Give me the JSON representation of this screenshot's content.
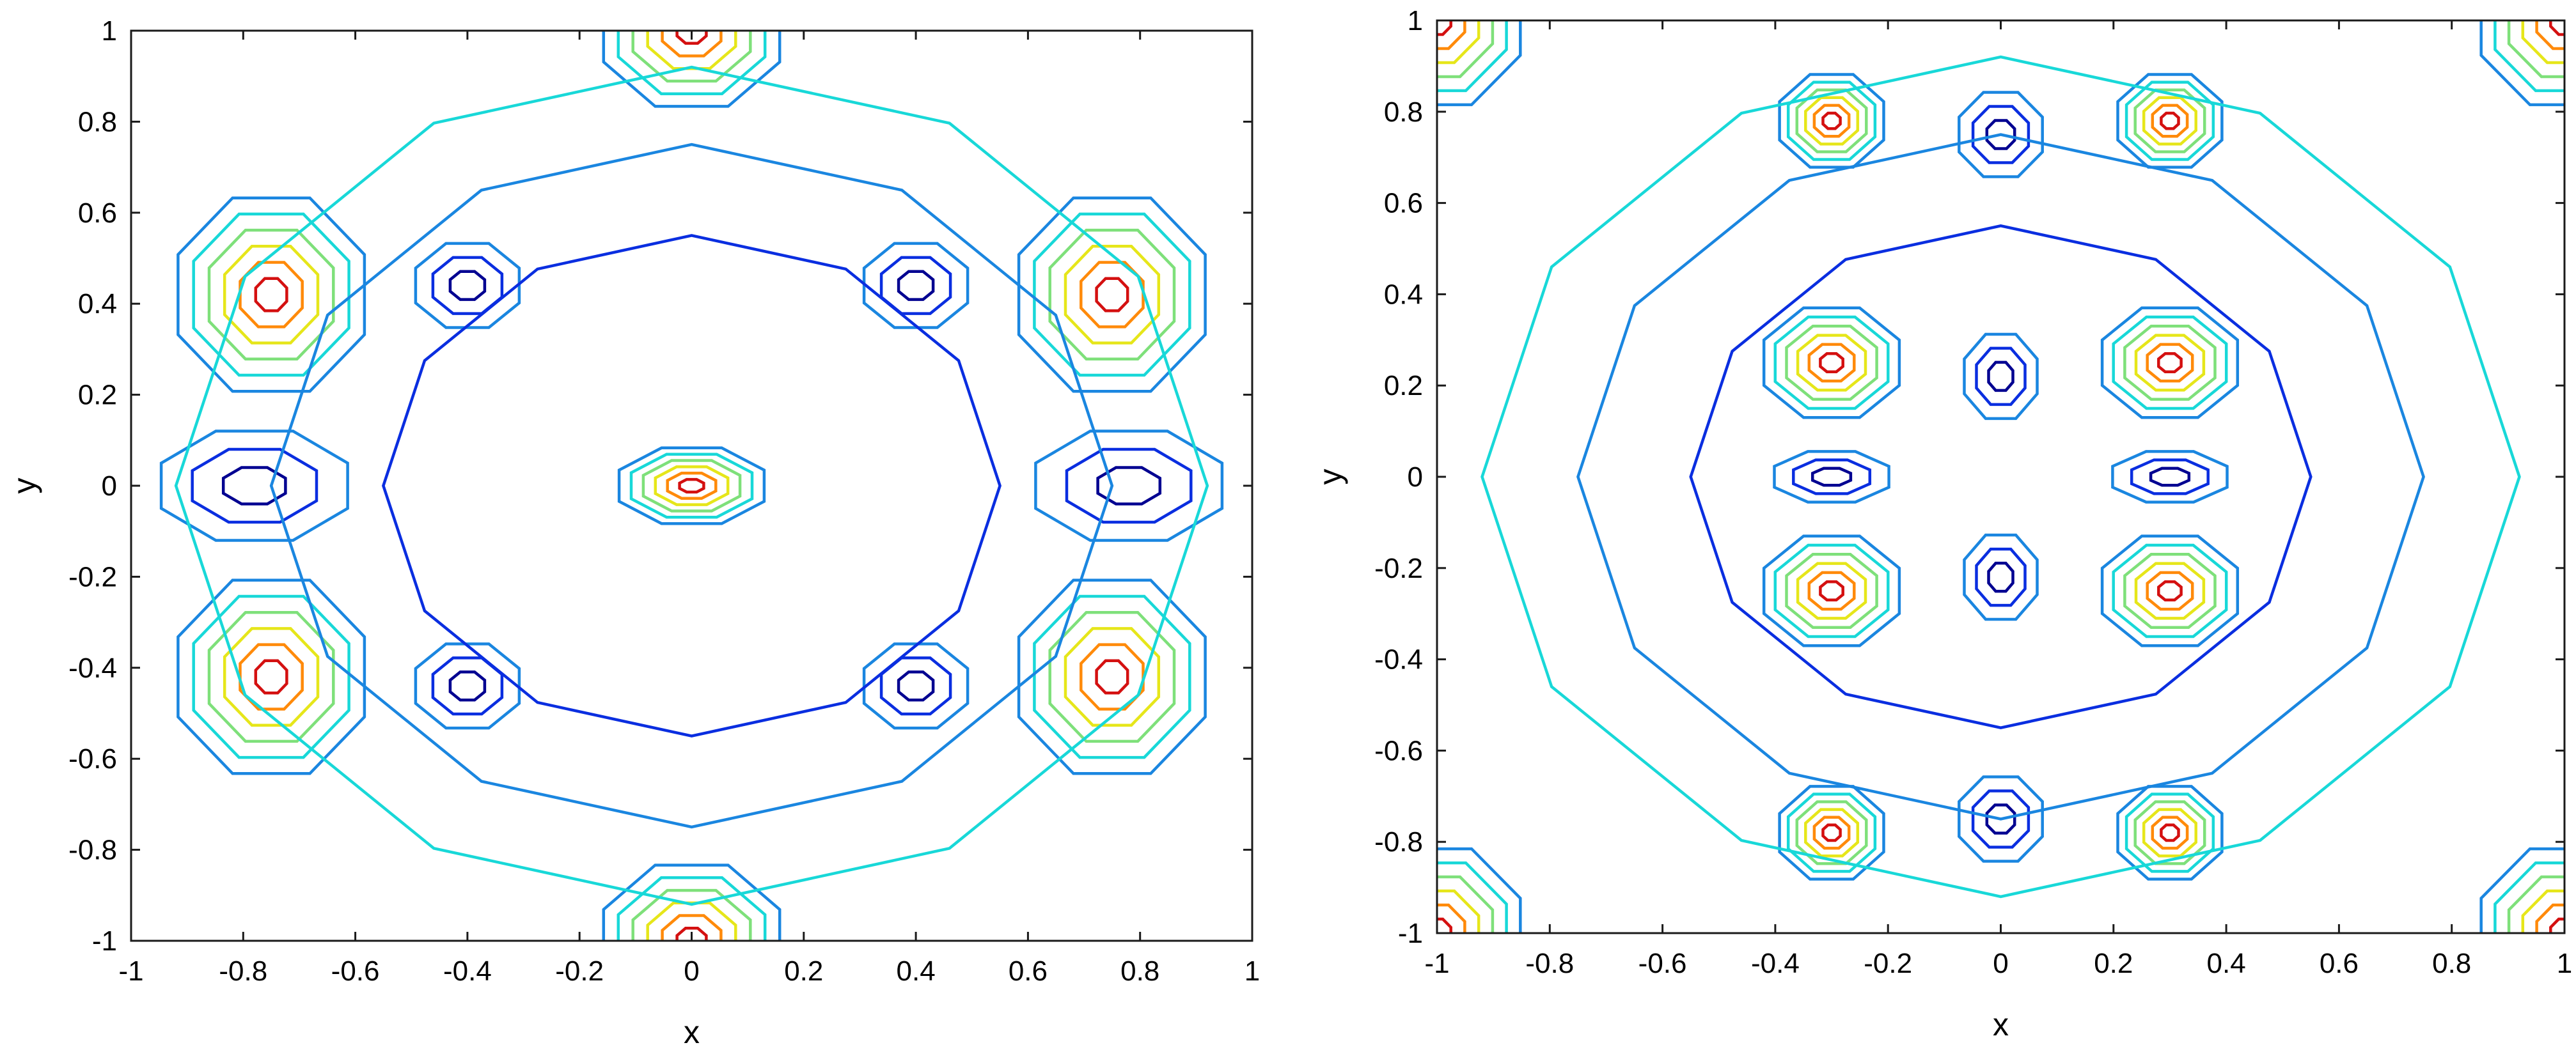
{
  "colors": {
    "levels": [
      "#000091",
      "#0a2ee0",
      "#1a86e0",
      "#18d8d8",
      "#7ee07a",
      "#e6e61a",
      "#ff8a0a",
      "#d41010"
    ]
  },
  "chart_data": [
    {
      "type": "contour",
      "title": "",
      "xlabel": "x",
      "ylabel": "y",
      "xlim": [
        -1,
        1
      ],
      "ylim": [
        -1,
        1
      ],
      "xticks": [
        -1,
        -0.8,
        -0.6,
        -0.4,
        -0.2,
        0,
        0.2,
        0.4,
        0.6,
        0.8,
        1
      ],
      "yticks": [
        -1,
        -0.8,
        -0.6,
        -0.4,
        -0.2,
        0,
        0.2,
        0.4,
        0.6,
        0.8,
        1
      ],
      "xtick_labels": [
        "-1",
        "-0.8",
        "-0.6",
        "-0.4",
        "-0.2",
        "0",
        "0.2",
        "0.4",
        "0.6",
        "0.8",
        "1"
      ],
      "ytick_labels": [
        "-1",
        "-0.8",
        "-0.6",
        "-0.4",
        "-0.2",
        "0",
        "0.2",
        "0.4",
        "0.6",
        "0.8",
        "1"
      ],
      "grid": false,
      "colormap": "jet",
      "features": [
        {
          "name": "peak-upper-left",
          "x": -0.75,
          "y": 0.42,
          "rx": 0.18,
          "ry": 0.23,
          "kind": "max"
        },
        {
          "name": "peak-upper-right",
          "x": 0.75,
          "y": 0.42,
          "rx": 0.18,
          "ry": 0.23,
          "kind": "max"
        },
        {
          "name": "peak-lower-left",
          "x": -0.75,
          "y": -0.42,
          "rx": 0.18,
          "ry": 0.23,
          "kind": "max"
        },
        {
          "name": "peak-lower-right",
          "x": 0.75,
          "y": -0.42,
          "rx": 0.18,
          "ry": 0.23,
          "kind": "max"
        },
        {
          "name": "peak-top-center",
          "x": 0,
          "y": 1.0,
          "rx": 0.17,
          "ry": 0.18,
          "kind": "max"
        },
        {
          "name": "peak-bottom-center",
          "x": 0,
          "y": -1.0,
          "rx": 0.17,
          "ry": 0.18,
          "kind": "max"
        },
        {
          "name": "center-bump",
          "x": 0,
          "y": 0.0,
          "rx": 0.14,
          "ry": 0.09,
          "kind": "max"
        },
        {
          "name": "trough-left",
          "x": -0.78,
          "y": 0.0,
          "rx": 0.18,
          "ry": 0.13,
          "kind": "min"
        },
        {
          "name": "trough-right",
          "x": 0.78,
          "y": 0.0,
          "rx": 0.18,
          "ry": 0.13,
          "kind": "min"
        },
        {
          "name": "trough-ul",
          "x": -0.4,
          "y": 0.44,
          "rx": 0.1,
          "ry": 0.1,
          "kind": "min"
        },
        {
          "name": "trough-ur",
          "x": 0.4,
          "y": 0.44,
          "rx": 0.1,
          "ry": 0.1,
          "kind": "min"
        },
        {
          "name": "trough-ll",
          "x": -0.4,
          "y": -0.44,
          "rx": 0.1,
          "ry": 0.1,
          "kind": "min"
        },
        {
          "name": "trough-lr",
          "x": 0.4,
          "y": -0.44,
          "rx": 0.1,
          "ry": 0.1,
          "kind": "min"
        }
      ]
    },
    {
      "type": "contour",
      "title": "",
      "xlabel": "x",
      "ylabel": "y",
      "xlim": [
        -1,
        1
      ],
      "ylim": [
        -1,
        1
      ],
      "xticks": [
        -1,
        -0.8,
        -0.6,
        -0.4,
        -0.2,
        0,
        0.2,
        0.4,
        0.6,
        0.8,
        1
      ],
      "yticks": [
        -1,
        -0.8,
        -0.6,
        -0.4,
        -0.2,
        0,
        0.2,
        0.4,
        0.6,
        0.8,
        1
      ],
      "xtick_labels": [
        "-1",
        "-0.8",
        "-0.6",
        "-0.4",
        "-0.2",
        "0",
        "0.2",
        "0.4",
        "0.6",
        "0.8",
        "1"
      ],
      "ytick_labels": [
        "-1",
        "-0.8",
        "-0.6",
        "-0.4",
        "-0.2",
        "0",
        "0.2",
        "0.4",
        "0.6",
        "0.8",
        "1"
      ],
      "grid": false,
      "colormap": "jet",
      "features": [
        {
          "name": "peak-ul",
          "x": -0.3,
          "y": 0.25,
          "rx": 0.13,
          "ry": 0.13,
          "kind": "max"
        },
        {
          "name": "peak-ur",
          "x": 0.3,
          "y": 0.25,
          "rx": 0.13,
          "ry": 0.13,
          "kind": "max"
        },
        {
          "name": "peak-ll",
          "x": -0.3,
          "y": -0.25,
          "rx": 0.13,
          "ry": 0.13,
          "kind": "max"
        },
        {
          "name": "peak-lr",
          "x": 0.3,
          "y": -0.25,
          "rx": 0.13,
          "ry": 0.13,
          "kind": "max"
        },
        {
          "name": "peak-top-l",
          "x": -0.3,
          "y": 0.78,
          "rx": 0.1,
          "ry": 0.11,
          "kind": "max"
        },
        {
          "name": "peak-top-r",
          "x": 0.3,
          "y": 0.78,
          "rx": 0.1,
          "ry": 0.11,
          "kind": "max"
        },
        {
          "name": "peak-bot-l",
          "x": -0.3,
          "y": -0.78,
          "rx": 0.1,
          "ry": 0.11,
          "kind": "max"
        },
        {
          "name": "peak-bot-r",
          "x": 0.3,
          "y": -0.78,
          "rx": 0.1,
          "ry": 0.11,
          "kind": "max"
        },
        {
          "name": "corner-ul",
          "x": -1.0,
          "y": 1.0,
          "rx": 0.16,
          "ry": 0.2,
          "kind": "max"
        },
        {
          "name": "corner-ur",
          "x": 1.0,
          "y": 1.0,
          "rx": 0.16,
          "ry": 0.2,
          "kind": "max"
        },
        {
          "name": "corner-ll",
          "x": -1.0,
          "y": -1.0,
          "rx": 0.16,
          "ry": 0.2,
          "kind": "max"
        },
        {
          "name": "corner-lr",
          "x": 1.0,
          "y": -1.0,
          "rx": 0.16,
          "ry": 0.2,
          "kind": "max"
        },
        {
          "name": "trough-center-top",
          "x": 0,
          "y": 0.75,
          "rx": 0.08,
          "ry": 0.1,
          "kind": "min"
        },
        {
          "name": "trough-center-bot",
          "x": 0,
          "y": -0.75,
          "rx": 0.08,
          "ry": 0.1,
          "kind": "min"
        },
        {
          "name": "trough-l0",
          "x": -0.3,
          "y": 0.0,
          "rx": 0.11,
          "ry": 0.06,
          "kind": "min"
        },
        {
          "name": "trough-r0",
          "x": 0.3,
          "y": 0.0,
          "rx": 0.11,
          "ry": 0.06,
          "kind": "min"
        },
        {
          "name": "trough-c-upper",
          "x": 0,
          "y": 0.22,
          "rx": 0.07,
          "ry": 0.1,
          "kind": "min"
        },
        {
          "name": "trough-c-lower",
          "x": 0,
          "y": -0.22,
          "rx": 0.07,
          "ry": 0.1,
          "kind": "min"
        }
      ]
    }
  ]
}
